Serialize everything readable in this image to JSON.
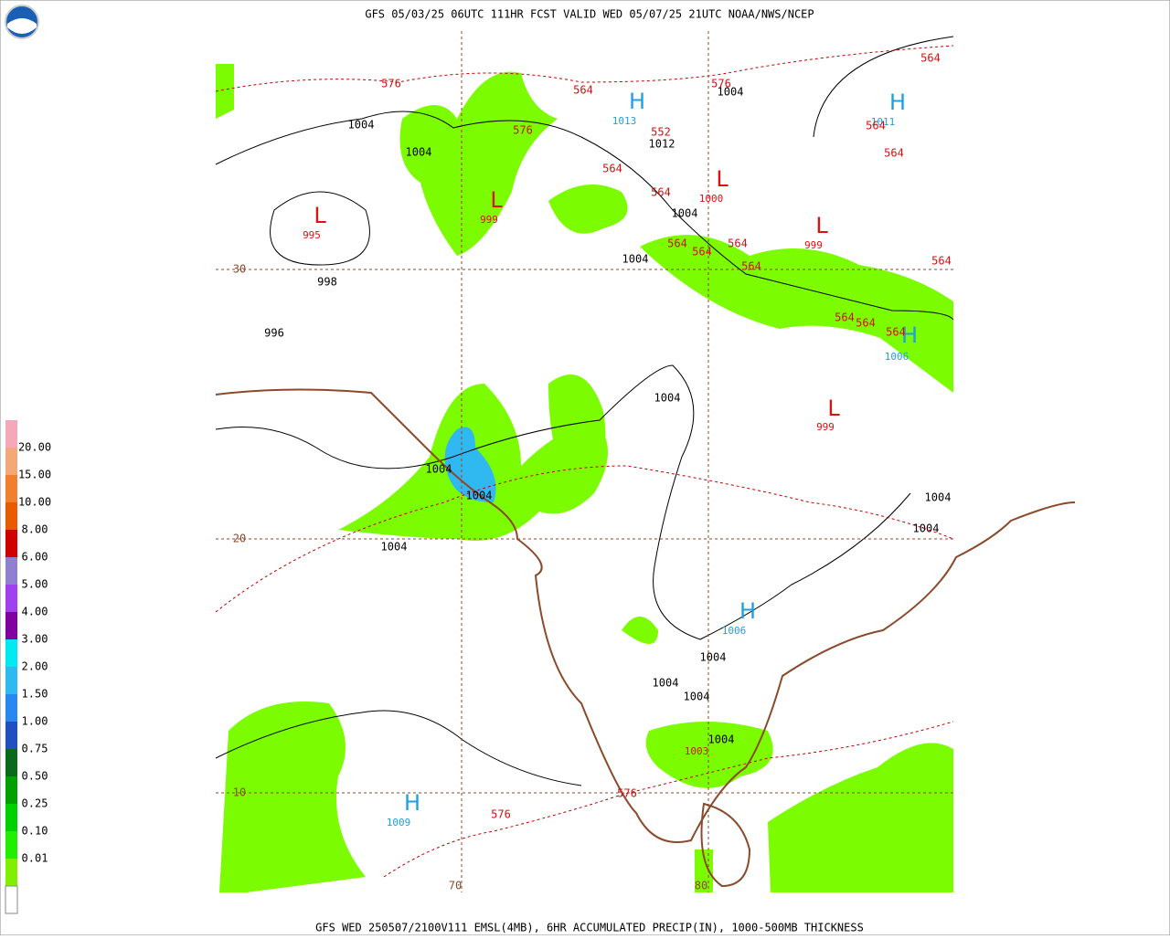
{
  "header": "GFS 05/03/25 06UTC 111HR FCST VALID WED 05/07/25 21UTC NOAA/NWS/NCEP",
  "footer": "GFS WED 250507/2100V111 EMSL(4MB), 6HR ACCUMULATED PRECIP(IN), 1000-500MB THICKNESS",
  "legend": {
    "labels": [
      "20.00",
      "15.00",
      "10.00",
      "8.00",
      "6.00",
      "5.00",
      "4.00",
      "3.00",
      "2.00",
      "1.50",
      "1.00",
      "0.75",
      "0.50",
      "0.25",
      "0.10",
      "0.01"
    ],
    "colors": [
      "#f4a8b8",
      "#f4a878",
      "#f08030",
      "#e85a00",
      "#d00000",
      "#9080d0",
      "#a040f0",
      "#8000a0",
      "#00e8f0",
      "#30b8f0",
      "#2888f0",
      "#2050c0",
      "#0a6a1a",
      "#00a000",
      "#00d000",
      "#20f000",
      "#80f000",
      "#ffffff"
    ]
  },
  "map": {
    "centers": [
      {
        "symbol": "L",
        "value": "995"
      },
      {
        "symbol": "L",
        "value": "999"
      },
      {
        "symbol": "H",
        "value": "1013"
      },
      {
        "symbol": "L",
        "value": "1000"
      },
      {
        "symbol": "L",
        "value": "999"
      },
      {
        "symbol": "H",
        "value": "1011"
      },
      {
        "symbol": "H",
        "value": "1006"
      },
      {
        "symbol": "L",
        "value": "999"
      },
      {
        "symbol": "H",
        "value": "1006"
      },
      {
        "symbol": "H",
        "value": "1009"
      }
    ],
    "low_value_extra": "1003",
    "isobar_labels": [
      "1004",
      "1004",
      "1012",
      "1004",
      "1004",
      "1004",
      "998",
      "996",
      "1004",
      "1004",
      "1004",
      "1004",
      "1004",
      "1004",
      "1004",
      "1004",
      "1004",
      "1004"
    ],
    "thickness_labels": [
      "576",
      "576",
      "564",
      "576",
      "552",
      "564",
      "564",
      "564",
      "564",
      "564",
      "564",
      "564",
      "564",
      "564",
      "564",
      "564",
      "564",
      "564",
      "576",
      "576"
    ],
    "lat_labels": [
      "30",
      "20",
      "10"
    ],
    "lon_labels": [
      "70",
      "80"
    ]
  }
}
